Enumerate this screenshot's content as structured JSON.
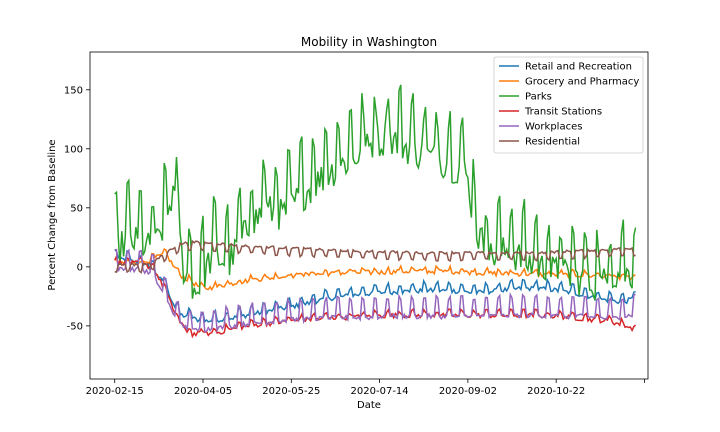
{
  "chart_data": {
    "type": "line",
    "title": "Mobility in Washington",
    "xlabel": "Date",
    "ylabel": "Percent Change from Baseline",
    "x_range": [
      "2020-02-01",
      "2020-12-13"
    ],
    "ylim": [
      -95,
      182
    ],
    "x_ticks": [
      "2020-02-15",
      "2020-04-05",
      "2020-05-25",
      "2020-07-14",
      "2020-09-02",
      "2020-10-22",
      ""
    ],
    "y_ticks": [
      -50,
      0,
      50,
      100,
      150
    ],
    "grid": false,
    "legend_position": "upper right",
    "colors": {
      "Retail and Recreation": "#1f77b4",
      "Grocery and Pharmacy": "#ff7f0e",
      "Parks": "#2ca02c",
      "Transit Stations": "#d62728",
      "Workplaces": "#9467bd",
      "Residential": "#8c564b"
    },
    "series": [
      {
        "name": "Retail and Recreation",
        "x": [
          "2020-02-15",
          "2020-03-01",
          "2020-03-08",
          "2020-03-15",
          "2020-03-22",
          "2020-04-05",
          "2020-04-19",
          "2020-05-03",
          "2020-05-17",
          "2020-05-31",
          "2020-06-14",
          "2020-06-28",
          "2020-07-12",
          "2020-07-26",
          "2020-08-09",
          "2020-08-23",
          "2020-09-06",
          "2020-09-20",
          "2020-10-04",
          "2020-10-18",
          "2020-11-01",
          "2020-11-15",
          "2020-11-29",
          "2020-12-06"
        ],
        "y": [
          10,
          5,
          0,
          -15,
          -38,
          -44,
          -42,
          -38,
          -34,
          -30,
          -25,
          -22,
          -20,
          -19,
          -18,
          -18,
          -20,
          -18,
          -16,
          -17,
          -20,
          -25,
          -28,
          -24
        ]
      },
      {
        "name": "Grocery and Pharmacy",
        "x": [
          "2020-02-15",
          "2020-03-01",
          "2020-03-15",
          "2020-03-22",
          "2020-04-05",
          "2020-04-19",
          "2020-05-03",
          "2020-05-17",
          "2020-05-31",
          "2020-06-14",
          "2020-06-28",
          "2020-07-12",
          "2020-07-26",
          "2020-08-09",
          "2020-08-23",
          "2020-09-06",
          "2020-09-20",
          "2020-10-04",
          "2020-10-18",
          "2020-11-01",
          "2020-11-15",
          "2020-11-29",
          "2020-12-06"
        ],
        "y": [
          3,
          4,
          12,
          -5,
          -18,
          -14,
          -10,
          -8,
          -6,
          -5,
          -4,
          -4,
          -3,
          -3,
          -3,
          -4,
          -5,
          -5,
          -6,
          -6,
          -7,
          -8,
          -9
        ]
      },
      {
        "name": "Parks",
        "x": [
          "2020-02-15",
          "2020-02-22",
          "2020-03-01",
          "2020-03-08",
          "2020-03-15",
          "2020-03-19",
          "2020-03-25",
          "2020-04-01",
          "2020-04-10",
          "2020-04-20",
          "2020-05-01",
          "2020-05-10",
          "2020-05-20",
          "2020-05-30",
          "2020-06-10",
          "2020-06-20",
          "2020-07-01",
          "2020-07-10",
          "2020-07-20",
          "2020-08-01",
          "2020-08-10",
          "2020-08-20",
          "2020-09-01",
          "2020-09-07",
          "2020-09-15",
          "2020-09-25",
          "2020-10-05",
          "2020-10-15",
          "2020-10-25",
          "2020-11-05",
          "2020-11-15",
          "2020-11-25",
          "2020-12-06"
        ],
        "y": [
          20,
          35,
          30,
          25,
          50,
          75,
          10,
          -10,
          20,
          15,
          45,
          60,
          55,
          70,
          85,
          95,
          105,
          115,
          120,
          110,
          105,
          100,
          90,
          40,
          20,
          25,
          15,
          10,
          5,
          0,
          -5,
          5,
          5
        ]
      },
      {
        "name": "Transit Stations",
        "x": [
          "2020-02-15",
          "2020-03-01",
          "2020-03-08",
          "2020-03-15",
          "2020-03-22",
          "2020-03-29",
          "2020-04-12",
          "2020-04-26",
          "2020-05-10",
          "2020-05-24",
          "2020-06-07",
          "2020-06-21",
          "2020-07-05",
          "2020-07-19",
          "2020-08-02",
          "2020-08-16",
          "2020-08-30",
          "2020-09-13",
          "2020-09-27",
          "2020-10-11",
          "2020-10-25",
          "2020-11-08",
          "2020-11-22",
          "2020-12-06"
        ],
        "y": [
          5,
          4,
          0,
          -20,
          -45,
          -56,
          -55,
          -50,
          -47,
          -45,
          -43,
          -42,
          -41,
          -40,
          -40,
          -40,
          -40,
          -40,
          -40,
          -40,
          -41,
          -43,
          -45,
          -52
        ]
      },
      {
        "name": "Workplaces",
        "x": [
          "2020-02-15",
          "2020-03-01",
          "2020-03-08",
          "2020-03-15",
          "2020-03-22",
          "2020-03-29",
          "2020-04-12",
          "2020-04-26",
          "2020-05-10",
          "2020-05-24",
          "2020-06-07",
          "2020-06-21",
          "2020-07-05",
          "2020-07-19",
          "2020-08-02",
          "2020-08-16",
          "2020-08-30",
          "2020-09-13",
          "2020-09-27",
          "2020-10-11",
          "2020-10-25",
          "2020-11-08",
          "2020-11-22",
          "2020-12-06"
        ],
        "y": [
          0,
          0,
          -5,
          -25,
          -45,
          -52,
          -50,
          -47,
          -45,
          -43,
          -42,
          -41,
          -41,
          -40,
          -40,
          -40,
          -40,
          -40,
          -39,
          -39,
          -40,
          -40,
          -42,
          -38
        ]
      },
      {
        "name": "Residential",
        "x": [
          "2020-02-15",
          "2020-03-01",
          "2020-03-08",
          "2020-03-15",
          "2020-03-22",
          "2020-03-29",
          "2020-04-12",
          "2020-04-26",
          "2020-05-10",
          "2020-05-24",
          "2020-06-07",
          "2020-06-21",
          "2020-07-05",
          "2020-07-19",
          "2020-08-02",
          "2020-08-16",
          "2020-08-30",
          "2020-09-13",
          "2020-09-27",
          "2020-10-11",
          "2020-10-25",
          "2020-11-08",
          "2020-11-22",
          "2020-12-06"
        ],
        "y": [
          0,
          0,
          2,
          10,
          17,
          19,
          18,
          16,
          15,
          14,
          13,
          12,
          11,
          11,
          10,
          10,
          10,
          10,
          10,
          10,
          11,
          12,
          13,
          14
        ]
      }
    ]
  }
}
